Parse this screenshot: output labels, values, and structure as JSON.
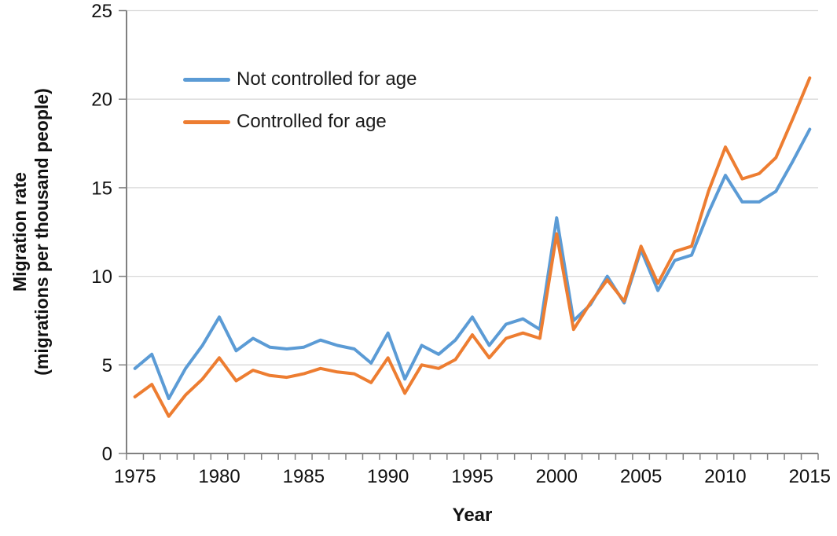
{
  "chart_data": {
    "type": "line",
    "xlabel": "Year",
    "ylabel_line1": "Migration rate",
    "ylabel_line2": "(migrations per thousand people)",
    "x": [
      1975,
      1976,
      1977,
      1978,
      1979,
      1980,
      1981,
      1982,
      1983,
      1984,
      1985,
      1986,
      1987,
      1988,
      1989,
      1990,
      1991,
      1992,
      1993,
      1994,
      1995,
      1996,
      1997,
      1998,
      1999,
      2000,
      2001,
      2002,
      2003,
      2004,
      2005,
      2006,
      2007,
      2008,
      2009,
      2010,
      2011,
      2012,
      2013,
      2014,
      2015
    ],
    "x_tick_labels": [
      1975,
      1980,
      1985,
      1990,
      1995,
      2000,
      2005,
      2010,
      2015
    ],
    "ylim": [
      0,
      25
    ],
    "y_ticks": [
      0,
      5,
      10,
      15,
      20,
      25
    ],
    "grid": "horizontal",
    "legend_position": "top-left-inside",
    "series": [
      {
        "name": "Not controlled for age",
        "color": "#5B9BD5",
        "values": [
          4.8,
          5.6,
          3.1,
          4.8,
          6.1,
          7.7,
          5.8,
          6.5,
          6.0,
          5.9,
          6.0,
          6.4,
          6.1,
          5.9,
          5.1,
          6.8,
          4.2,
          6.1,
          5.6,
          6.4,
          7.7,
          6.1,
          7.3,
          7.6,
          7.0,
          13.3,
          7.5,
          8.4,
          10.0,
          8.5,
          11.5,
          9.2,
          10.9,
          11.2,
          13.6,
          15.7,
          14.2,
          14.2,
          14.8,
          16.5,
          18.3
        ]
      },
      {
        "name": "Controlled for age",
        "color": "#ED7D31",
        "values": [
          3.2,
          3.9,
          2.1,
          3.3,
          4.2,
          5.4,
          4.1,
          4.7,
          4.4,
          4.3,
          4.5,
          4.8,
          4.6,
          4.5,
          4.0,
          5.4,
          3.4,
          5.0,
          4.8,
          5.3,
          6.7,
          5.4,
          6.5,
          6.8,
          6.5,
          12.4,
          7.0,
          8.5,
          9.8,
          8.6,
          11.7,
          9.6,
          11.4,
          11.7,
          14.8,
          17.3,
          15.5,
          15.8,
          16.7,
          18.9,
          21.2
        ]
      }
    ],
    "style": {
      "gridline_color": "#D9D9D9",
      "axis_color": "#808080",
      "tick_color": "#808080",
      "label_color": "#111111"
    }
  }
}
